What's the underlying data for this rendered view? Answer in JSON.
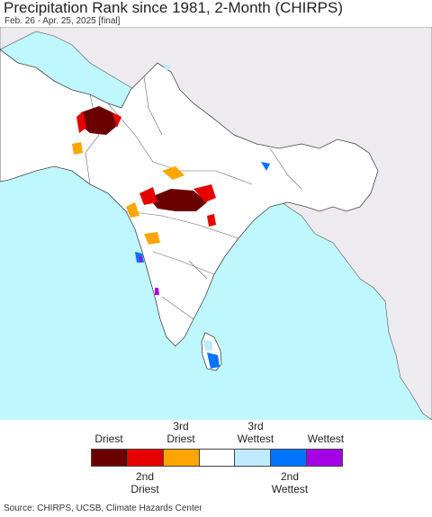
{
  "header": {
    "title": "Precipitation Rank since 1981, 2-Month (CHIRPS)",
    "subtitle": "Feb. 26 - Apr. 25, 2025 [final]"
  },
  "colors": {
    "ocean": "#bff7ff",
    "land_study": "#ffffff",
    "land_outside": "#eeebf0",
    "border": "#333333"
  },
  "legend": {
    "top_labels": [
      {
        "text": "Driest",
        "color": "#6b0000"
      },
      {
        "text": "3rd\nDriest",
        "color": "#ffa500"
      },
      {
        "text": "3rd\nWettest",
        "color": "#bfeaff"
      },
      {
        "text": "Wettest",
        "color": "#a500e6"
      }
    ],
    "bottom_labels": [
      {
        "text": "2nd\nDriest",
        "color": "#e60000"
      },
      {
        "text": "2nd\nWettest",
        "color": "#0073ff"
      }
    ],
    "swatches": [
      {
        "name": "driest",
        "color": "#6b0000"
      },
      {
        "name": "2nd-driest",
        "color": "#e60000"
      },
      {
        "name": "3rd-driest",
        "color": "#ffa500"
      },
      {
        "name": "neutral",
        "color": "#ffffff"
      },
      {
        "name": "3rd-wettest",
        "color": "#bfeaff"
      },
      {
        "name": "2nd-wettest",
        "color": "#0073ff"
      },
      {
        "name": "wettest",
        "color": "#a500e6"
      }
    ]
  },
  "footer": {
    "source": "Source: CHIRPS, UCSB, Climate Hazards Center"
  }
}
